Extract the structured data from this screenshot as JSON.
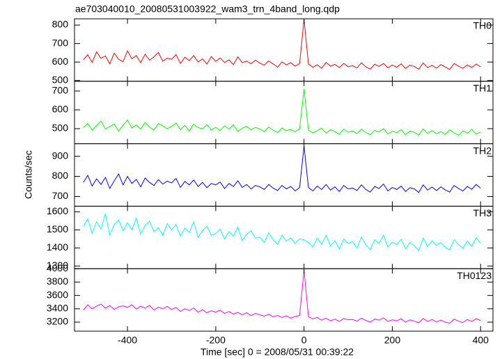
{
  "title": "ae703040010_20080531003922_wam3_trn_4band_long.qdp",
  "x_label": "Time [sec] 0 = 2008/05/31 00:39:22",
  "y_label": "Counts/sec",
  "chart_data": [
    {
      "type": "line",
      "label": "TH0",
      "color": "#ff0000",
      "xlim": [
        -520,
        428
      ],
      "xticks": [
        -400,
        -200,
        0,
        200,
        400
      ],
      "ylim": [
        496,
        834
      ],
      "yticks": [
        500,
        600,
        700,
        800
      ],
      "x": [
        -500,
        -490,
        -480,
        -470,
        -460,
        -450,
        -440,
        -430,
        -420,
        -410,
        -400,
        -390,
        -380,
        -370,
        -360,
        -350,
        -340,
        -330,
        -320,
        -310,
        -300,
        -290,
        -280,
        -270,
        -260,
        -250,
        -240,
        -230,
        -220,
        -210,
        -200,
        -190,
        -180,
        -170,
        -160,
        -150,
        -140,
        -130,
        -120,
        -110,
        -100,
        -90,
        -80,
        -70,
        -60,
        -50,
        -40,
        -30,
        -20,
        -10,
        0,
        10,
        20,
        30,
        40,
        50,
        60,
        70,
        80,
        90,
        100,
        110,
        120,
        130,
        140,
        150,
        160,
        170,
        180,
        190,
        200,
        210,
        220,
        230,
        240,
        250,
        260,
        270,
        280,
        290,
        300,
        310,
        320,
        330,
        340,
        350,
        360,
        370,
        380,
        390,
        400
      ],
      "values": [
        612,
        640,
        598,
        655,
        620,
        633,
        590,
        648,
        615,
        602,
        660,
        618,
        635,
        597,
        642,
        610,
        628,
        652,
        604,
        621,
        615,
        640,
        592,
        626,
        608,
        635,
        600,
        617,
        589,
        630,
        603,
        622,
        598,
        612,
        586,
        628,
        597,
        605,
        591,
        610,
        594,
        583,
        606,
        590,
        572,
        601,
        585,
        596,
        578,
        592,
        830,
        590,
        572,
        585,
        566,
        598,
        578,
        587,
        570,
        593,
        575,
        581,
        568,
        596,
        574,
        562,
        588,
        577,
        592,
        569,
        584,
        572,
        590,
        565,
        583,
        576,
        561,
        595,
        570,
        582,
        567,
        586,
        573,
        560,
        592,
        578,
        566,
        584,
        571,
        589,
        574
      ]
    },
    {
      "type": "line",
      "label": "TH1",
      "color": "#00ff00",
      "xlim": [
        -520,
        428
      ],
      "xticks": [
        -400,
        -200,
        0,
        200,
        400
      ],
      "ylim": [
        420,
        752
      ],
      "yticks": [
        500,
        600,
        700
      ],
      "x": [
        -500,
        -490,
        -480,
        -470,
        -460,
        -450,
        -440,
        -430,
        -420,
        -410,
        -400,
        -390,
        -380,
        -370,
        -360,
        -350,
        -340,
        -330,
        -320,
        -310,
        -300,
        -290,
        -280,
        -270,
        -260,
        -250,
        -240,
        -230,
        -220,
        -210,
        -200,
        -190,
        -180,
        -170,
        -160,
        -150,
        -140,
        -130,
        -120,
        -110,
        -100,
        -90,
        -80,
        -70,
        -60,
        -50,
        -40,
        -30,
        -20,
        -10,
        0,
        10,
        20,
        30,
        40,
        50,
        60,
        70,
        80,
        90,
        100,
        110,
        120,
        130,
        140,
        150,
        160,
        170,
        180,
        190,
        200,
        210,
        220,
        230,
        240,
        250,
        260,
        270,
        280,
        290,
        300,
        310,
        320,
        330,
        340,
        350,
        360,
        370,
        380,
        390,
        400
      ],
      "values": [
        505,
        528,
        492,
        516,
        540,
        498,
        511,
        525,
        487,
        519,
        545,
        503,
        520,
        498,
        533,
        509,
        492,
        527,
        515,
        500,
        512,
        530,
        495,
        518,
        488,
        524,
        506,
        499,
        521,
        493,
        508,
        490,
        515,
        497,
        521,
        486,
        503,
        512,
        494,
        507,
        498,
        485,
        509,
        492,
        480,
        503,
        490,
        496,
        484,
        500,
        710,
        492,
        478,
        489,
        503,
        476,
        495,
        485,
        470,
        498,
        481,
        488,
        474,
        497,
        480,
        469,
        491,
        483,
        500,
        472,
        486,
        479,
        495,
        468,
        487,
        481,
        466,
        499,
        475,
        490,
        473,
        484,
        470,
        494,
        478,
        465,
        488,
        476,
        497,
        471,
        482
      ]
    },
    {
      "type": "line",
      "label": "TH2",
      "color": "#0000ff",
      "xlim": [
        -520,
        428
      ],
      "xticks": [
        -400,
        -200,
        0,
        200,
        400
      ],
      "ylim": [
        652,
        962
      ],
      "yticks": [
        700,
        800,
        900
      ],
      "x": [
        -500,
        -490,
        -480,
        -470,
        -460,
        -450,
        -440,
        -430,
        -420,
        -410,
        -400,
        -390,
        -380,
        -370,
        -360,
        -350,
        -340,
        -330,
        -320,
        -310,
        -300,
        -290,
        -280,
        -270,
        -260,
        -250,
        -240,
        -230,
        -220,
        -210,
        -200,
        -190,
        -180,
        -170,
        -160,
        -150,
        -140,
        -130,
        -120,
        -110,
        -100,
        -90,
        -80,
        -70,
        -60,
        -50,
        -40,
        -30,
        -20,
        -10,
        0,
        10,
        20,
        30,
        40,
        50,
        60,
        70,
        80,
        90,
        100,
        110,
        120,
        130,
        140,
        150,
        160,
        170,
        180,
        190,
        200,
        210,
        220,
        230,
        240,
        250,
        260,
        270,
        280,
        290,
        300,
        310,
        320,
        330,
        340,
        350,
        360,
        370,
        380,
        390,
        400
      ],
      "values": [
        770,
        805,
        752,
        788,
        760,
        795,
        740,
        778,
        812,
        758,
        800,
        765,
        785,
        748,
        792,
        770,
        755,
        784,
        762,
        776,
        768,
        790,
        745,
        775,
        758,
        782,
        750,
        770,
        744,
        765,
        758,
        772,
        740,
        765,
        750,
        778,
        745,
        760,
        738,
        755,
        748,
        735,
        760,
        742,
        730,
        755,
        738,
        750,
        728,
        745,
        950,
        745,
        728,
        752,
        735,
        760,
        732,
        748,
        725,
        755,
        738,
        742,
        730,
        758,
        735,
        722,
        750,
        740,
        762,
        728,
        745,
        735,
        752,
        725,
        744,
        738,
        720,
        758,
        732,
        747,
        730,
        748,
        733,
        722,
        755,
        740,
        728,
        750,
        736,
        760,
        742
      ]
    },
    {
      "type": "line",
      "label": "TH3",
      "color": "#00ffff",
      "xlim": [
        -520,
        428
      ],
      "xticks": [
        -400,
        -200,
        0,
        200,
        400
      ],
      "ylim": [
        1285,
        1631
      ],
      "yticks": [
        1300,
        1400,
        1500,
        1600
      ],
      "x": [
        -500,
        -490,
        -480,
        -470,
        -460,
        -450,
        -440,
        -430,
        -420,
        -410,
        -400,
        -390,
        -380,
        -370,
        -360,
        -350,
        -340,
        -330,
        -320,
        -310,
        -300,
        -290,
        -280,
        -270,
        -260,
        -250,
        -240,
        -230,
        -220,
        -210,
        -200,
        -190,
        -180,
        -170,
        -160,
        -150,
        -140,
        -130,
        -120,
        -110,
        -100,
        -90,
        -80,
        -70,
        -60,
        -50,
        -40,
        -30,
        -20,
        -10,
        0,
        10,
        20,
        30,
        40,
        50,
        60,
        70,
        80,
        90,
        100,
        110,
        120,
        130,
        140,
        150,
        160,
        170,
        180,
        190,
        200,
        210,
        220,
        230,
        240,
        250,
        260,
        270,
        280,
        290,
        300,
        310,
        320,
        330,
        340,
        350,
        360,
        370,
        380,
        390,
        400
      ],
      "values": [
        1520,
        1560,
        1480,
        1545,
        1505,
        1590,
        1470,
        1530,
        1555,
        1495,
        1540,
        1500,
        1565,
        1475,
        1525,
        1548,
        1490,
        1512,
        1470,
        1535,
        1500,
        1530,
        1465,
        1510,
        1485,
        1545,
        1460,
        1495,
        1520,
        1470,
        1480,
        1505,
        1450,
        1490,
        1465,
        1515,
        1440,
        1475,
        1495,
        1455,
        1460,
        1430,
        1485,
        1445,
        1420,
        1470,
        1438,
        1455,
        1425,
        1450,
        1445,
        1430,
        1405,
        1455,
        1420,
        1470,
        1410,
        1440,
        1395,
        1450,
        1425,
        1435,
        1400,
        1460,
        1418,
        1390,
        1445,
        1425,
        1470,
        1405,
        1432,
        1420,
        1448,
        1395,
        1430,
        1412,
        1385,
        1455,
        1408,
        1440,
        1415,
        1430,
        1402,
        1390,
        1445,
        1418,
        1398,
        1438,
        1410,
        1455,
        1425
      ]
    },
    {
      "type": "line",
      "label": "TH0123",
      "color": "#ff00ff",
      "xlim": [
        -520,
        428
      ],
      "xticks": [
        -400,
        -200,
        0,
        200,
        400
      ],
      "ylim": [
        3065,
        4000
      ],
      "yticks": [
        3200,
        3400,
        3600,
        3800,
        4000
      ],
      "x": [
        -500,
        -490,
        -480,
        -470,
        -460,
        -450,
        -440,
        -430,
        -420,
        -410,
        -400,
        -390,
        -380,
        -370,
        -360,
        -350,
        -340,
        -330,
        -320,
        -310,
        -300,
        -290,
        -280,
        -270,
        -260,
        -250,
        -240,
        -230,
        -220,
        -210,
        -200,
        -190,
        -180,
        -170,
        -160,
        -150,
        -140,
        -130,
        -120,
        -110,
        -100,
        -90,
        -80,
        -70,
        -60,
        -50,
        -40,
        -30,
        -20,
        -10,
        0,
        10,
        20,
        30,
        40,
        50,
        60,
        70,
        80,
        90,
        100,
        110,
        120,
        130,
        140,
        150,
        160,
        170,
        180,
        190,
        200,
        210,
        220,
        230,
        240,
        250,
        260,
        270,
        280,
        290,
        300,
        310,
        320,
        330,
        340,
        350,
        360,
        370,
        380,
        390,
        400
      ],
      "values": [
        3380,
        3460,
        3400,
        3440,
        3470,
        3410,
        3450,
        3390,
        3430,
        3445,
        3420,
        3460,
        3395,
        3440,
        3410,
        3450,
        3380,
        3425,
        3400,
        3435,
        3390,
        3420,
        3360,
        3400,
        3375,
        3410,
        3350,
        3385,
        3340,
        3370,
        3350,
        3380,
        3330,
        3360,
        3320,
        3345,
        3310,
        3340,
        3300,
        3330,
        3310,
        3290,
        3320,
        3280,
        3300,
        3270,
        3295,
        3260,
        3285,
        3300,
        3980,
        3280,
        3250,
        3270,
        3230,
        3260,
        3220,
        3245,
        3210,
        3255,
        3235,
        3240,
        3215,
        3260,
        3225,
        3200,
        3245,
        3230,
        3265,
        3210,
        3235,
        3220,
        3250,
        3200,
        3235,
        3215,
        3190,
        3255,
        3210,
        3240,
        3205,
        3230,
        3200,
        3185,
        3245,
        3215,
        3195,
        3240,
        3210,
        3250,
        3225
      ]
    }
  ]
}
